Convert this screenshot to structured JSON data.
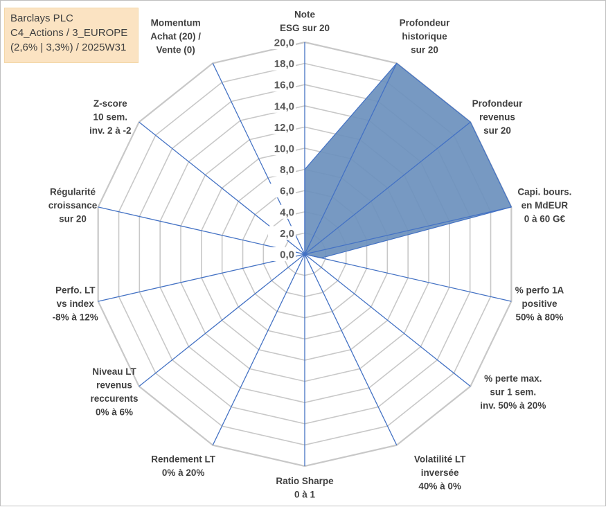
{
  "info_box": {
    "lines": [
      "Barclays PLC",
      "C4_Actions / 3_EUROPE",
      "(2,6% | 3,3%) / 2025W31"
    ]
  },
  "chart_data": {
    "type": "radar",
    "title": "",
    "rmin": 0,
    "rmax": 20,
    "tick_step": 2,
    "tick_labels": [
      "0,0",
      "2,0",
      "4,0",
      "6,0",
      "8,0",
      "10,0",
      "12,0",
      "14,0",
      "16,0",
      "18,0",
      "20,0"
    ],
    "grid": true,
    "colors": {
      "fill": "#6b90bd",
      "line": "#4472c4",
      "grid": "#c8c8c8",
      "axis": "#4472c4",
      "stroke": "#ffffff"
    },
    "axes": [
      {
        "lines": [
          "Note",
          "ESG sur 20"
        ],
        "value": 8.0
      },
      {
        "lines": [
          "Profondeur",
          "historique",
          "sur 20"
        ],
        "value": 20.0
      },
      {
        "lines": [
          "Profondeur",
          "revenus",
          "sur 20"
        ],
        "value": 20.0
      },
      {
        "lines": [
          "Capi. bours.",
          "en MdEUR",
          "0 à 60 G€"
        ],
        "value": 20.0
      },
      {
        "lines": [
          "% perfo 1A",
          "positive",
          "50% à 80%"
        ],
        "value": 1.6
      },
      {
        "lines": [
          "% perte max.",
          "sur 1 sem.",
          "inv. 50% à 20%"
        ],
        "value": 0.0
      },
      {
        "lines": [
          "Volatilité LT",
          "inversée",
          "40% à 0%"
        ],
        "value": 0.0
      },
      {
        "lines": [
          "Ratio Sharpe",
          "0 à 1"
        ],
        "value": 0.0
      },
      {
        "lines": [
          "Rendement LT",
          "0% à 20%"
        ],
        "value": 0.0
      },
      {
        "lines": [
          "Niveau LT",
          "revenus",
          "reccurents",
          "0% à 6%"
        ],
        "value": 0.0
      },
      {
        "lines": [
          "Perfo. LT",
          "vs index",
          "-8% à 12%"
        ],
        "value": 0.0
      },
      {
        "lines": [
          "Régularité",
          "croissance",
          "sur 20"
        ],
        "value": 0.0
      },
      {
        "lines": [
          "Z-score",
          "10 sem.",
          "inv. 2 à -2"
        ],
        "value": 0.0
      },
      {
        "lines": [
          "Momentum",
          "Achat (20) /",
          "Vente (0)"
        ],
        "value": 0.0
      }
    ]
  }
}
